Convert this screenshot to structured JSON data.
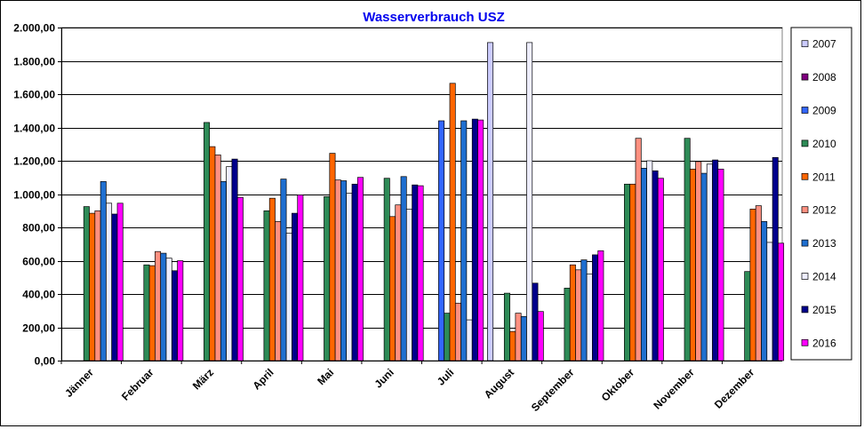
{
  "chart_data": {
    "type": "bar",
    "title": "Wasserverbrauch USZ",
    "xlabel": "",
    "ylabel": "",
    "ylim": [
      0,
      2000
    ],
    "yticks": [
      "0,00",
      "200,00",
      "400,00",
      "600,00",
      "800,00",
      "1.000,00",
      "1.200,00",
      "1.400,00",
      "1.600,00",
      "1.800,00",
      "2.000,00"
    ],
    "grid": true,
    "legend_position": "right",
    "categories": [
      "Jänner",
      "Februar",
      "März",
      "April",
      "Mai",
      "Juni",
      "Juli",
      "August",
      "September",
      "Oktober",
      "November",
      "Dezember"
    ],
    "series": [
      {
        "name": "2007",
        "color": "#ccccff",
        "values": [
          null,
          null,
          null,
          null,
          null,
          null,
          null,
          1910,
          null,
          null,
          null,
          null
        ]
      },
      {
        "name": "2008",
        "color": "#800080",
        "values": [
          null,
          null,
          null,
          null,
          null,
          null,
          null,
          null,
          null,
          null,
          null,
          null
        ]
      },
      {
        "name": "2009",
        "color": "#3366ff",
        "values": [
          null,
          null,
          null,
          null,
          null,
          null,
          1440,
          null,
          null,
          null,
          null,
          null
        ]
      },
      {
        "name": "2010",
        "color": "#2e8b57",
        "values": [
          925,
          575,
          1430,
          900,
          985,
          1095,
          285,
          405,
          435,
          1060,
          1335,
          535
        ]
      },
      {
        "name": "2011",
        "color": "#ff6600",
        "values": [
          885,
          570,
          1285,
          975,
          1245,
          865,
          1665,
          175,
          575,
          1060,
          1150,
          910
        ]
      },
      {
        "name": "2012",
        "color": "#ff9080",
        "values": [
          900,
          655,
          1235,
          835,
          1085,
          935,
          345,
          285,
          545,
          1335,
          1195,
          930
        ]
      },
      {
        "name": "2013",
        "color": "#1f6fd0",
        "values": [
          1075,
          645,
          1075,
          1090,
          1080,
          1105,
          1440,
          265,
          605,
          1155,
          1125,
          835
        ]
      },
      {
        "name": "2014",
        "color": "#eeeeff",
        "values": [
          945,
          615,
          1165,
          765,
          1005,
          910,
          245,
          1910,
          520,
          1200,
          1180,
          710
        ]
      },
      {
        "name": "2015",
        "color": "#00008b",
        "values": [
          880,
          540,
          1210,
          885,
          1060,
          1055,
          1450,
          465,
          635,
          1140,
          1205,
          1220
        ]
      },
      {
        "name": "2016",
        "color": "#ff00ff",
        "values": [
          945,
          600,
          980,
          995,
          1100,
          1050,
          1445,
          295,
          660,
          1095,
          1150,
          705
        ]
      }
    ]
  }
}
